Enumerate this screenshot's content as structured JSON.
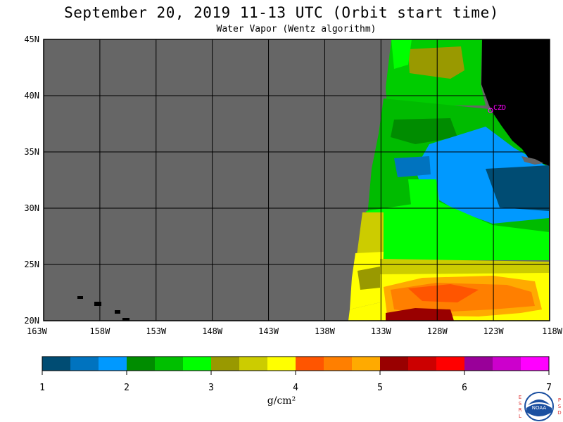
{
  "header": {
    "title": "September 20, 2019  11-13 UTC  (Orbit start time)",
    "subtitle": "Water Vapor (Wentz algorithm)"
  },
  "map": {
    "lat_labels": [
      "45N",
      "40N",
      "35N",
      "30N",
      "25N",
      "20N"
    ],
    "lon_labels": [
      "163W",
      "158W",
      "153W",
      "148W",
      "143W",
      "138W",
      "133W",
      "128W",
      "123W",
      "118W"
    ],
    "no_data_color": "#666666",
    "land_color": "#000000",
    "station": {
      "label": "CZD",
      "color": "#ff00ff"
    }
  },
  "colorbar": {
    "colors": [
      "#004c73",
      "#0073bf",
      "#0099ff",
      "#008c00",
      "#00bf00",
      "#00ff00",
      "#999900",
      "#cccc00",
      "#ffff00",
      "#ff5500",
      "#ff7f00",
      "#ffaa00",
      "#990000",
      "#cc0000",
      "#ff0000",
      "#990099",
      "#cc00cc",
      "#ff00ff"
    ],
    "tick_labels": [
      "1",
      "2",
      "3",
      "4",
      "5",
      "6",
      "7"
    ],
    "units": "g/cm²"
  },
  "logo": {
    "left_letters": [
      "E",
      "S",
      "R",
      "L"
    ],
    "right_letters": [
      "P",
      "S",
      "D"
    ],
    "center": "NOAA"
  }
}
